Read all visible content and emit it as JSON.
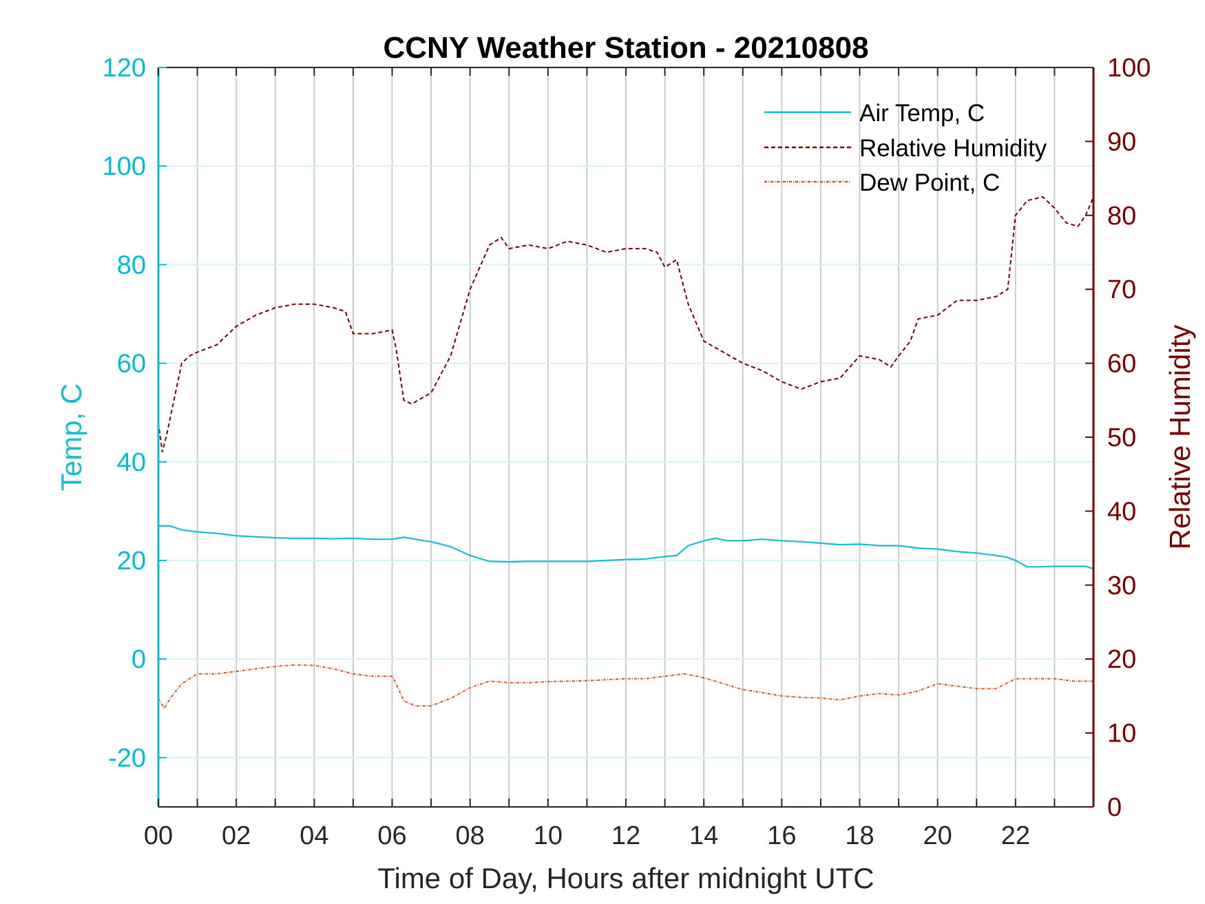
{
  "chart_data": {
    "type": "line",
    "title": "CCNY Weather Station - 20210808",
    "xlabel": "Time of Day, Hours after midnight UTC",
    "ylabel_left": "Temp, C",
    "ylabel_right": "Relative Humidity",
    "xlim": [
      0,
      24
    ],
    "ylim_left": [
      -30,
      120
    ],
    "ylim_right": [
      0,
      100
    ],
    "x_ticks": [
      0,
      2,
      4,
      6,
      8,
      10,
      12,
      14,
      16,
      18,
      20,
      22
    ],
    "x_tick_labels": [
      "00",
      "02",
      "04",
      "06",
      "08",
      "10",
      "12",
      "14",
      "16",
      "18",
      "20",
      "22"
    ],
    "y_left_ticks": [
      -20,
      0,
      20,
      40,
      60,
      80,
      100,
      120
    ],
    "y_left_tick_labels": [
      "-20",
      "0",
      "20",
      "40",
      "60",
      "80",
      "100",
      "120"
    ],
    "y_right_ticks": [
      0,
      10,
      20,
      30,
      40,
      50,
      60,
      70,
      80,
      90,
      100
    ],
    "y_right_tick_labels": [
      "0",
      "10",
      "20",
      "30",
      "40",
      "50",
      "60",
      "70",
      "80",
      "90",
      "100"
    ],
    "grid": true,
    "legend_position": "top-right",
    "colors": {
      "left_axis": "#00bcd4",
      "right_axis": "#7a0000",
      "grid_vertical": "#c8ccd0",
      "grid_horizontal": "#d8f2f7"
    },
    "series": [
      {
        "name": "Air Temp, C",
        "axis": "left",
        "color": "#17becf",
        "style": "solid",
        "x": [
          0,
          0.3,
          0.6,
          1.0,
          1.5,
          2.0,
          2.5,
          3.0,
          3.5,
          4.0,
          4.5,
          5.0,
          5.5,
          6.0,
          6.3,
          6.6,
          7.0,
          7.5,
          8.0,
          8.5,
          9.0,
          9.5,
          10.0,
          10.5,
          11.0,
          11.5,
          12.0,
          12.5,
          13.0,
          13.3,
          13.6,
          14.0,
          14.3,
          14.6,
          15.0,
          15.5,
          16.0,
          16.5,
          17.0,
          17.5,
          18.0,
          18.5,
          19.0,
          19.5,
          20.0,
          20.5,
          21.0,
          21.5,
          21.8,
          22.0,
          22.3,
          22.6,
          23.0,
          23.5,
          23.8,
          24.0
        ],
        "y": [
          27,
          27,
          26.2,
          25.8,
          25.5,
          25.0,
          24.8,
          24.6,
          24.5,
          24.5,
          24.4,
          24.5,
          24.3,
          24.3,
          24.7,
          24.3,
          23.8,
          22.8,
          21.0,
          19.8,
          19.7,
          19.8,
          19.8,
          19.8,
          19.8,
          20.0,
          20.2,
          20.3,
          20.8,
          21.0,
          23.0,
          24.0,
          24.5,
          24.0,
          24.0,
          24.3,
          24.0,
          23.8,
          23.5,
          23.2,
          23.3,
          23.0,
          23.0,
          22.5,
          22.3,
          21.8,
          21.5,
          21.0,
          20.6,
          20.0,
          18.7,
          18.7,
          18.8,
          18.8,
          18.8,
          18.3
        ]
      },
      {
        "name": "Relative Humidity",
        "axis": "right",
        "color": "#7a0000",
        "style": "dashed",
        "x": [
          0,
          0.1,
          0.2,
          0.4,
          0.6,
          0.8,
          1.0,
          1.5,
          2.0,
          2.5,
          3.0,
          3.5,
          4.0,
          4.5,
          4.8,
          5.0,
          5.5,
          6.0,
          6.1,
          6.3,
          6.5,
          7.0,
          7.5,
          8.0,
          8.5,
          8.8,
          9.0,
          9.5,
          10.0,
          10.5,
          11.0,
          11.5,
          12.0,
          12.5,
          12.8,
          13.0,
          13.3,
          13.6,
          14.0,
          14.5,
          15.0,
          15.5,
          16.0,
          16.5,
          17.0,
          17.5,
          18.0,
          18.5,
          18.8,
          19.0,
          19.3,
          19.5,
          20.0,
          20.5,
          21.0,
          21.5,
          21.8,
          22.0,
          22.3,
          22.7,
          23.0,
          23.3,
          23.6,
          23.8,
          24.0
        ],
        "y": [
          52,
          48,
          50,
          55,
          60,
          61,
          61.5,
          62.5,
          65.0,
          66.5,
          67.5,
          68.0,
          68.0,
          67.5,
          67.0,
          64.0,
          64.0,
          64.5,
          62.0,
          55.0,
          54.5,
          56.0,
          61.0,
          70.0,
          76.0,
          77.0,
          75.5,
          76.0,
          75.5,
          76.5,
          76.0,
          75.0,
          75.5,
          75.5,
          75.0,
          73.0,
          74.0,
          68.0,
          63.0,
          61.5,
          60.0,
          59.0,
          57.5,
          56.5,
          57.5,
          58.0,
          61.0,
          60.5,
          59.5,
          61.0,
          63.0,
          66.0,
          66.5,
          68.5,
          68.5,
          69.0,
          70.0,
          80.0,
          82.0,
          82.5,
          81.0,
          79.0,
          78.5,
          80.0,
          82.5
        ]
      },
      {
        "name": "Dew Point, C",
        "axis": "left",
        "color": "#d95319",
        "style": "dashdot",
        "x": [
          0,
          0.15,
          0.3,
          0.6,
          1.0,
          1.5,
          2.0,
          2.5,
          3.0,
          3.5,
          4.0,
          4.5,
          5.0,
          5.5,
          6.0,
          6.1,
          6.3,
          6.6,
          7.0,
          7.5,
          8.0,
          8.5,
          9.0,
          9.5,
          10.0,
          10.5,
          11.0,
          11.5,
          12.0,
          12.5,
          13.0,
          13.5,
          14.0,
          14.5,
          15.0,
          15.5,
          16.0,
          16.5,
          17.0,
          17.5,
          18.0,
          18.5,
          19.0,
          19.5,
          20.0,
          20.5,
          21.0,
          21.5,
          22.0,
          22.5,
          23.0,
          23.5,
          24.0
        ],
        "y": [
          -8,
          -10,
          -8,
          -5,
          -3,
          -3,
          -2.5,
          -2,
          -1.5,
          -1.2,
          -1.3,
          -2,
          -3,
          -3.5,
          -3.5,
          -5,
          -8.5,
          -9.5,
          -9.5,
          -8.0,
          -5.8,
          -4.5,
          -4.8,
          -4.8,
          -4.6,
          -4.5,
          -4.4,
          -4.2,
          -4.0,
          -4.0,
          -3.5,
          -3.0,
          -3.8,
          -5.0,
          -6.2,
          -6.8,
          -7.5,
          -7.8,
          -7.9,
          -8.3,
          -7.5,
          -7.0,
          -7.3,
          -6.5,
          -5.0,
          -5.5,
          -6.0,
          -6.0,
          -4.0,
          -4.0,
          -4.0,
          -4.5,
          -4.5
        ]
      }
    ]
  }
}
